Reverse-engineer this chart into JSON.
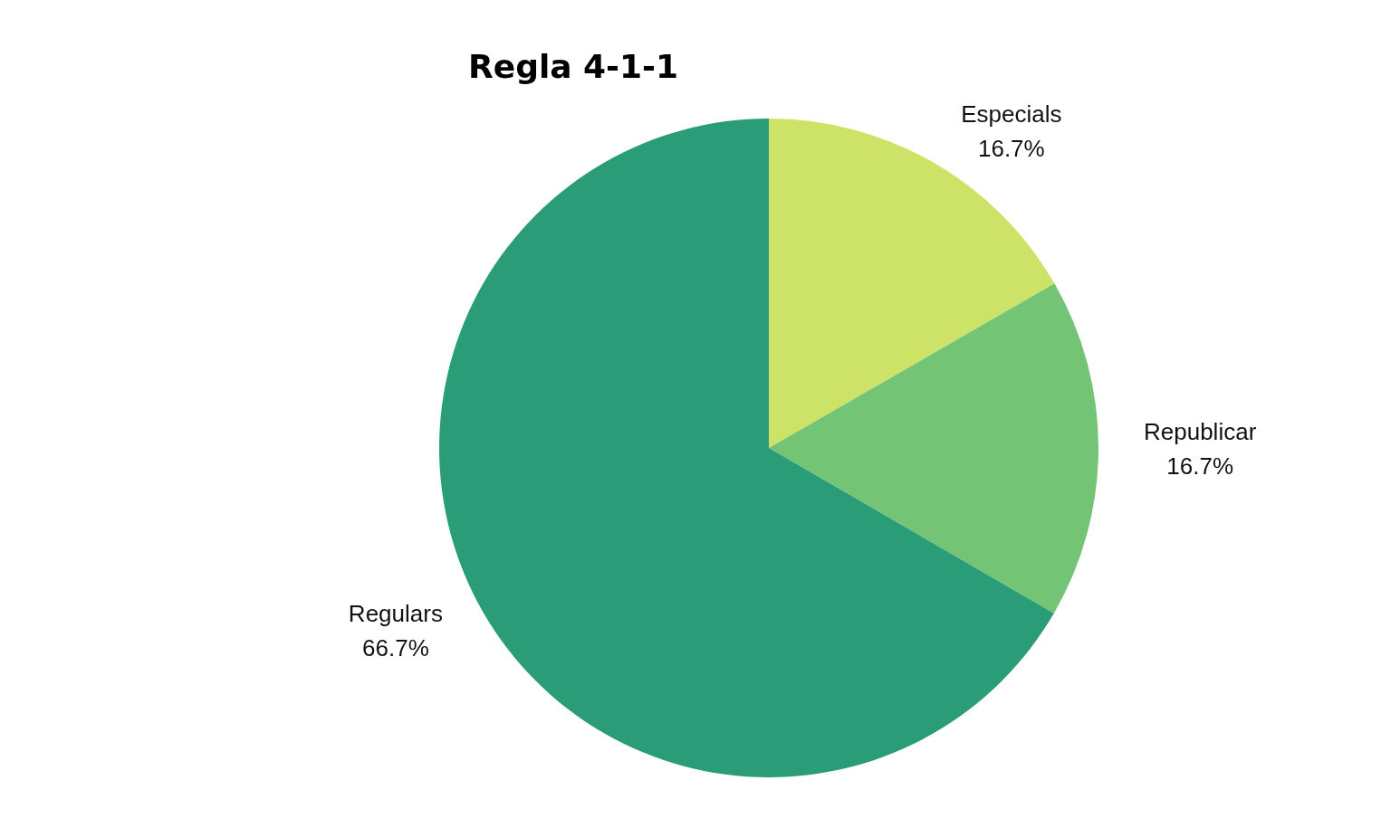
{
  "chart_data": {
    "type": "pie",
    "title": "Regla 4-1-1",
    "categories": [
      "Especials",
      "Republicar",
      "Regulars"
    ],
    "values": [
      16.7,
      16.7,
      66.7
    ],
    "colors": [
      "#cce368",
      "#74c476",
      "#2a9d78"
    ],
    "value_labels": [
      "16.7%",
      "16.7%",
      "66.7%"
    ]
  }
}
